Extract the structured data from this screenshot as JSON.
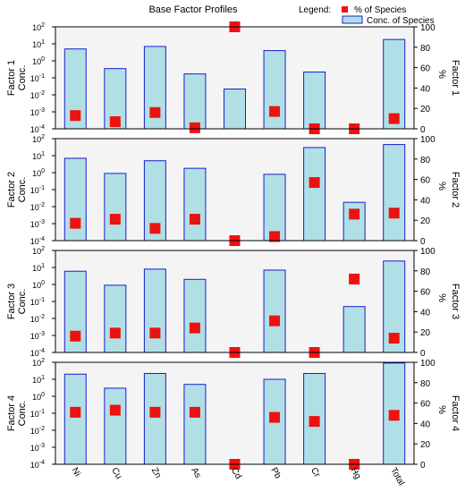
{
  "title": "Base Factor Profiles",
  "legend": {
    "label": "Legend:",
    "items": [
      {
        "name": "% of Species",
        "marker": "square",
        "color": "#ee1111"
      },
      {
        "name": "Conc. of Species",
        "marker": "bar",
        "color": "#b0e0e6",
        "edge": "#1c1ccf"
      }
    ]
  },
  "colors": {
    "bar_fill": "#b0e0e6",
    "bar_edge": "#1c1ccf",
    "marker": "#ee1111",
    "panel_bg": "#f4f4f4"
  },
  "chart_data": {
    "type": "bar",
    "categories": [
      "Ni",
      "Cu",
      "Zn",
      "As",
      "Cd",
      "Pb",
      "Cr",
      "Hg",
      "Total"
    ],
    "left_axis": {
      "scale": "log",
      "ylim": [
        0.0001,
        100
      ],
      "ticks": [
        "10^-4",
        "10^-3",
        "10^-2",
        "10^-1",
        "10^0",
        "10^1",
        "10^2"
      ]
    },
    "right_axis": {
      "scale": "linear",
      "ylabel": "%",
      "ylim": [
        0,
        100
      ],
      "ticks": [
        "0",
        "20",
        "40",
        "60",
        "80",
        "100"
      ]
    },
    "panels": [
      {
        "ylabel": "Factor 1\nConc.",
        "right_label": "Factor 1",
        "conc": [
          5,
          0.35,
          7,
          0.17,
          0.022,
          4,
          0.22,
          null,
          18
        ],
        "percent": [
          13,
          7,
          16,
          1,
          100,
          17,
          0,
          0,
          10
        ]
      },
      {
        "ylabel": "Factor 2\nConc.",
        "right_label": "Factor 2",
        "conc": [
          7,
          0.9,
          5,
          1.8,
          null,
          0.8,
          30,
          0.018,
          45
        ],
        "percent": [
          17,
          21,
          12,
          21,
          0,
          4,
          57,
          26,
          27
        ]
      },
      {
        "ylabel": "Factor 3\nConc.",
        "right_label": "Factor 3",
        "conc": [
          6,
          0.9,
          8,
          2,
          null,
          7,
          null,
          0.05,
          24
        ],
        "percent": [
          16,
          19,
          19,
          24,
          0,
          31,
          0,
          72,
          14
        ]
      },
      {
        "ylabel": "Factor 4\nConc.",
        "right_label": "Factor 4",
        "conc": [
          20,
          3,
          22,
          5,
          null,
          10,
          22,
          null,
          90
        ],
        "percent": [
          51,
          53,
          51,
          51,
          0,
          46,
          42,
          0,
          48
        ]
      }
    ]
  }
}
